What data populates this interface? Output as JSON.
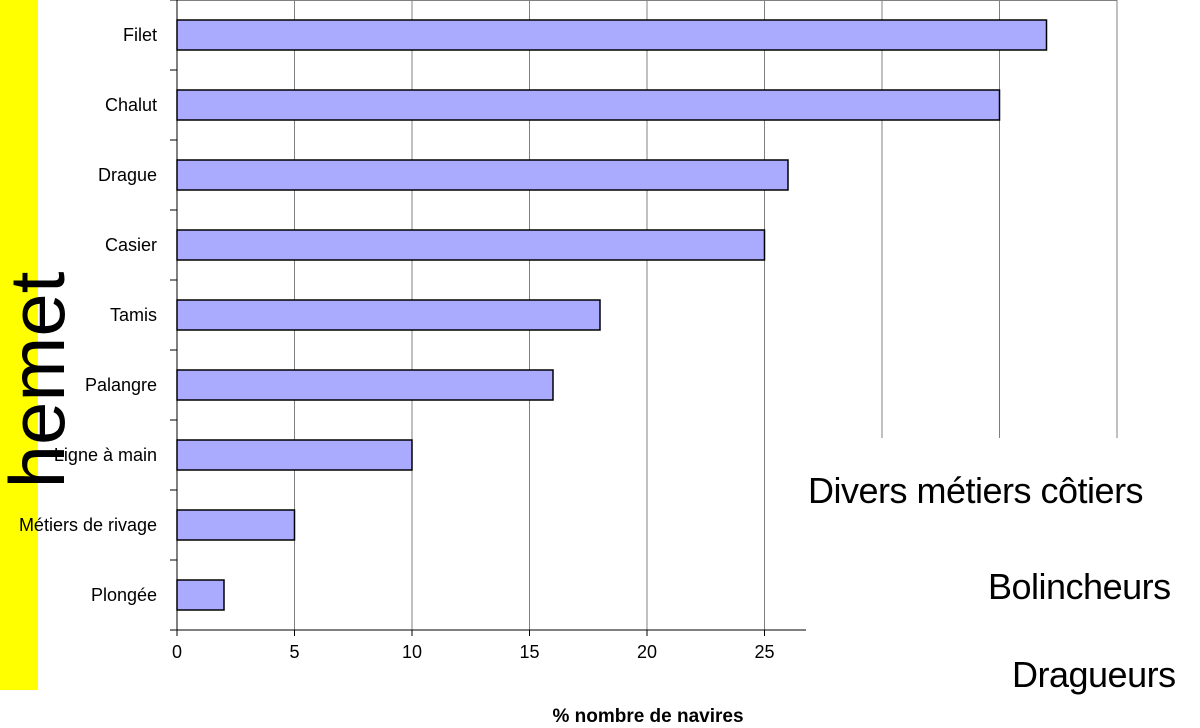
{
  "side_label": "hemet",
  "right_texts": [
    "Divers métiers côtiers",
    "Bolincheurs",
    "Dragueurs"
  ],
  "colors": {
    "bar_fill": "#aaaaff",
    "bar_stroke": "#000000",
    "grid": "#808080",
    "highlight": "#ffff00"
  },
  "chart_data": {
    "type": "bar",
    "orientation": "horizontal",
    "categories": [
      "Filet",
      "Chalut",
      "Drague",
      "Casier",
      "Tamis",
      "Palangre",
      "Ligne à main",
      "Métiers de rivage",
      "Plongée"
    ],
    "values": [
      37,
      35,
      26,
      25,
      18,
      16,
      10,
      5,
      2
    ],
    "xlabel": "% nombre de navires",
    "ylabel": "",
    "xlim": [
      0,
      40
    ],
    "xticks": [
      0,
      5,
      10,
      15,
      20,
      25
    ],
    "grid": true,
    "legend": "none"
  }
}
